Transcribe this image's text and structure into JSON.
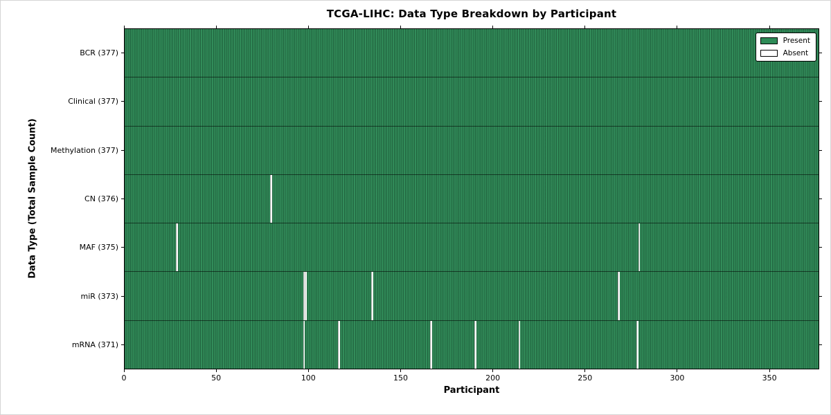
{
  "chart_data": {
    "type": "heatmap",
    "title": "TCGA-LIHC: Data Type Breakdown by Participant",
    "xlabel": "Participant",
    "ylabel": "Data Type (Total Sample Count)",
    "x_ticks": [
      0,
      50,
      100,
      150,
      200,
      250,
      300,
      350
    ],
    "x_range": [
      0,
      377
    ],
    "total_participants": 377,
    "grid": false,
    "colors": {
      "present": "#2e8b57",
      "absent": "#ffffff",
      "bar_edge": "#000000"
    },
    "legend": {
      "position": "upper right",
      "entries": [
        {
          "label": "Present",
          "color": "#2e8b57"
        },
        {
          "label": "Absent",
          "color": "#ffffff"
        }
      ]
    },
    "rows": [
      {
        "label": "BCR (377)",
        "data_type": "BCR",
        "present_count": 377,
        "absent_participants": []
      },
      {
        "label": "Clinical (377)",
        "data_type": "Clinical",
        "present_count": 377,
        "absent_participants": []
      },
      {
        "label": "Methylation (377)",
        "data_type": "Methylation",
        "present_count": 377,
        "absent_participants": []
      },
      {
        "label": "CN (376)",
        "data_type": "CN",
        "present_count": 376,
        "absent_participants": [
          79
        ]
      },
      {
        "label": "MAF (375)",
        "data_type": "MAF",
        "present_count": 375,
        "absent_participants": [
          28,
          279
        ]
      },
      {
        "label": "miR (373)",
        "data_type": "miR",
        "present_count": 373,
        "absent_participants": [
          97,
          98,
          134,
          268
        ]
      },
      {
        "label": "mRNA (371)",
        "data_type": "mRNA",
        "present_count": 371,
        "absent_participants": [
          97,
          116,
          166,
          190,
          214,
          278
        ]
      }
    ]
  }
}
